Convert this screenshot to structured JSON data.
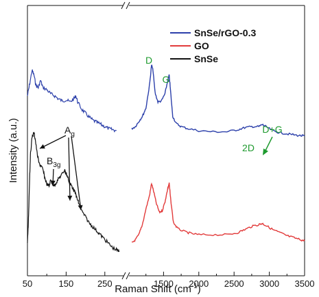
{
  "chart_data": {
    "type": "line",
    "title": "",
    "xlabel": "Raman Shift (cm",
    "xlabel_sup": "-1",
    "xlabel_end": ")",
    "ylabel": "Intensity (a.u.)",
    "x_break": true,
    "x_segments": [
      {
        "xlim": [
          50,
          300
        ],
        "ticks": [
          "50",
          "150",
          "250"
        ],
        "tick_values": [
          50,
          150,
          250
        ]
      },
      {
        "xlim": [
          1000,
          3500
        ],
        "ticks": [
          "1500",
          "2000",
          "2500",
          "3000",
          "3500"
        ],
        "tick_values": [
          1500,
          2000,
          2500,
          3000,
          3500
        ]
      }
    ],
    "minor_ticks": [
      100,
      200,
      1250,
      1750,
      2250,
      2750,
      3250
    ],
    "legend_position": "top-right",
    "series": [
      {
        "name": "SnSe/rGO-0.3",
        "color": "#2b3faa",
        "segment1": {
          "x": [
            50,
            55,
            62,
            67,
            72,
            78,
            84,
            90,
            100,
            110,
            120,
            130,
            140,
            150,
            160,
            170,
            175,
            180,
            190,
            200,
            210,
            220,
            230,
            240,
            250,
            260,
            270,
            280
          ],
          "y": [
            0.7,
            0.8,
            0.95,
            0.9,
            0.8,
            0.78,
            0.85,
            0.78,
            0.76,
            0.72,
            0.7,
            0.67,
            0.65,
            0.66,
            0.64,
            0.67,
            0.7,
            0.64,
            0.57,
            0.53,
            0.49,
            0.46,
            0.44,
            0.42,
            0.4,
            0.38,
            0.37,
            0.36
          ]
        },
        "segment2": {
          "x": [
            1050,
            1100,
            1150,
            1200,
            1250,
            1300,
            1330,
            1350,
            1380,
            1420,
            1470,
            1520,
            1560,
            1580,
            1600,
            1630,
            1680,
            1750,
            1850,
            2000,
            2200,
            2400,
            2550,
            2650,
            2750,
            2850,
            2900,
            2950,
            3050,
            3150,
            3250,
            3350,
            3450,
            3500
          ],
          "y": [
            0.38,
            0.4,
            0.45,
            0.5,
            0.58,
            0.8,
            1.0,
            0.95,
            0.73,
            0.64,
            0.65,
            0.72,
            0.85,
            0.9,
            0.74,
            0.5,
            0.43,
            0.4,
            0.38,
            0.36,
            0.35,
            0.35,
            0.37,
            0.39,
            0.4,
            0.4,
            0.42,
            0.4,
            0.36,
            0.34,
            0.33,
            0.32,
            0.31,
            0.31
          ]
        }
      },
      {
        "name": "GO",
        "color": "#e23a3a",
        "segment2": {
          "x": [
            1050,
            1100,
            1150,
            1200,
            1250,
            1300,
            1330,
            1360,
            1400,
            1440,
            1480,
            1520,
            1560,
            1580,
            1600,
            1640,
            1700,
            1800,
            1900,
            2000,
            2200,
            2400,
            2550,
            2650,
            2750,
            2850,
            2900,
            2950,
            3050,
            3150,
            3250,
            3350,
            3450,
            3500
          ],
          "y": [
            0.02,
            0.05,
            0.1,
            0.2,
            0.35,
            0.48,
            0.6,
            0.52,
            0.4,
            0.32,
            0.33,
            0.42,
            0.55,
            0.6,
            0.45,
            0.22,
            0.16,
            0.13,
            0.11,
            0.1,
            0.1,
            0.1,
            0.12,
            0.15,
            0.18,
            0.2,
            0.21,
            0.19,
            0.15,
            0.12,
            0.09,
            0.07,
            0.05,
            0.04
          ]
        }
      },
      {
        "name": "SnSe",
        "color": "#111111",
        "segment1": {
          "x": [
            50,
            52,
            54,
            56,
            58,
            62,
            67,
            70,
            75,
            80,
            85,
            90,
            95,
            100,
            106,
            110,
            118,
            125,
            132,
            140,
            146,
            150,
            155,
            160,
            165,
            170,
            175,
            178,
            182,
            190,
            200,
            210,
            220,
            230,
            240,
            250,
            260,
            270,
            280,
            287
          ],
          "y": [
            0.05,
            0.12,
            0.25,
            0.38,
            0.48,
            0.56,
            0.58,
            0.55,
            0.48,
            0.43,
            0.42,
            0.4,
            0.36,
            0.33,
            0.32,
            0.35,
            0.32,
            0.34,
            0.36,
            0.38,
            0.4,
            0.38,
            0.36,
            0.33,
            0.32,
            0.3,
            0.28,
            0.26,
            0.24,
            0.2,
            0.17,
            0.14,
            0.12,
            0.1,
            0.08,
            0.06,
            0.04,
            0.02,
            0.01,
            0.0
          ]
        }
      }
    ],
    "annotations": {
      "D": "D",
      "G": "G",
      "2D": "2D",
      "DG": "D+G",
      "Ag_main": "A",
      "Ag_sub": "g",
      "B3g_main": "B",
      "B3g_sub": "3g"
    }
  }
}
